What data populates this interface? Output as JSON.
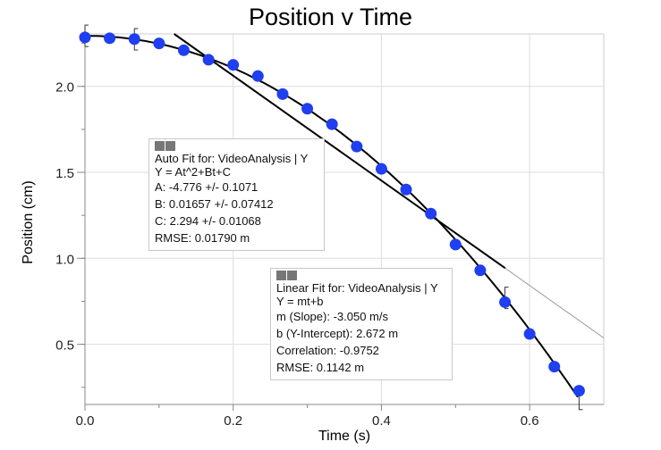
{
  "chart_data": {
    "type": "scatter",
    "title": "Position v Time",
    "xlabel": "Time (s)",
    "ylabel": "Position (cm)",
    "xlim": [
      0,
      0.7
    ],
    "ylim": [
      0.15,
      2.305
    ],
    "xticks": [
      "0.0",
      "0.2",
      "0.4",
      "0.6"
    ],
    "yticks": [
      "0.5",
      "1.0",
      "1.5",
      "2.0"
    ],
    "grid": true,
    "series": [
      {
        "name": "VideoAnalysis | Y",
        "color": "#1f3ff0",
        "x": [
          0,
          0.0333,
          0.0667,
          0.1,
          0.1333,
          0.1667,
          0.2,
          0.2333,
          0.2667,
          0.3,
          0.3333,
          0.3667,
          0.4,
          0.4333,
          0.4667,
          0.5,
          0.5333,
          0.5667,
          0.6,
          0.6333,
          0.6667
        ],
        "y": [
          2.285,
          2.28,
          2.275,
          2.25,
          2.21,
          2.155,
          2.125,
          2.06,
          1.955,
          1.87,
          1.78,
          1.65,
          1.52,
          1.4,
          1.26,
          1.08,
          0.93,
          0.745,
          0.56,
          0.37,
          0.23
        ]
      }
    ],
    "fits": {
      "quadratic": {
        "A": -4.776,
        "B": 0.01657,
        "C": 2.294,
        "lines": [
          "Auto Fit for: VideoAnalysis | Y",
          "Y = At^2+Bt+C",
          "A: -4.776 +/- 0.1071",
          "B: 0.01657 +/- 0.07412",
          "C: 2.294 +/- 0.01068",
          "RMSE: 0.01790 m"
        ]
      },
      "linear": {
        "m": -3.05,
        "b": 2.672,
        "fit_range": [
          0,
          0.567
        ],
        "lines": [
          "Linear Fit for: VideoAnalysis | Y",
          "Y = mt+b",
          "m (Slope): -3.050 m/s",
          "b (Y-Intercept): 2.672 m",
          "Correlation: -0.9752",
          "RMSE: 0.1142 m"
        ]
      }
    }
  }
}
